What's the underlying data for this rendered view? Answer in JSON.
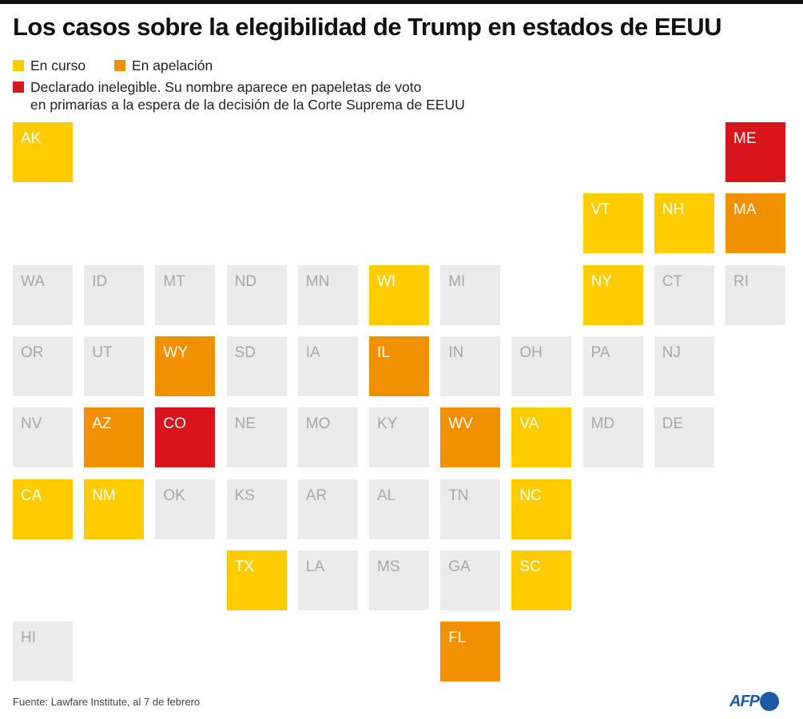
{
  "title": "Los casos sobre la elegibilidad de Trump en estados de EEUU",
  "colors": {
    "en_curso": "#FFCC00",
    "apelacion": "#F29100",
    "inelegible": "#D9141C",
    "none": "#EBEBEB",
    "none_text": "#A8A8A8"
  },
  "legend": {
    "en_curso": "En curso",
    "apelacion": "En apelación",
    "inelegible_1": "Declarado inelegible. Su nombre aparece en papeletas de voto",
    "inelegible_2": "en primarias a la espera de la decisión de la Corte Suprema de EEUU"
  },
  "states": [
    {
      "code": "AK",
      "status": "en_curso"
    },
    {
      "code": "ME",
      "status": "inelegible"
    },
    {
      "code": "VT",
      "status": "en_curso"
    },
    {
      "code": "NH",
      "status": "en_curso"
    },
    {
      "code": "MA",
      "status": "apelacion"
    },
    {
      "code": "WA",
      "status": "none"
    },
    {
      "code": "ID",
      "status": "none"
    },
    {
      "code": "MT",
      "status": "none"
    },
    {
      "code": "ND",
      "status": "none"
    },
    {
      "code": "MN",
      "status": "none"
    },
    {
      "code": "WI",
      "status": "en_curso"
    },
    {
      "code": "MI",
      "status": "none"
    },
    {
      "code": "NY",
      "status": "en_curso"
    },
    {
      "code": "CT",
      "status": "none"
    },
    {
      "code": "RI",
      "status": "none"
    },
    {
      "code": "OR",
      "status": "none"
    },
    {
      "code": "UT",
      "status": "none"
    },
    {
      "code": "WY",
      "status": "apelacion"
    },
    {
      "code": "SD",
      "status": "none"
    },
    {
      "code": "IA",
      "status": "none"
    },
    {
      "code": "IL",
      "status": "apelacion"
    },
    {
      "code": "IN",
      "status": "none"
    },
    {
      "code": "OH",
      "status": "none"
    },
    {
      "code": "PA",
      "status": "none"
    },
    {
      "code": "NJ",
      "status": "none"
    },
    {
      "code": "NV",
      "status": "none"
    },
    {
      "code": "AZ",
      "status": "apelacion"
    },
    {
      "code": "CO",
      "status": "inelegible"
    },
    {
      "code": "NE",
      "status": "none"
    },
    {
      "code": "MO",
      "status": "none"
    },
    {
      "code": "KY",
      "status": "none"
    },
    {
      "code": "WV",
      "status": "apelacion"
    },
    {
      "code": "VA",
      "status": "en_curso"
    },
    {
      "code": "MD",
      "status": "none"
    },
    {
      "code": "DE",
      "status": "none"
    },
    {
      "code": "CA",
      "status": "en_curso"
    },
    {
      "code": "NM",
      "status": "en_curso"
    },
    {
      "code": "OK",
      "status": "none"
    },
    {
      "code": "KS",
      "status": "none"
    },
    {
      "code": "AR",
      "status": "none"
    },
    {
      "code": "AL",
      "status": "none"
    },
    {
      "code": "TN",
      "status": "none"
    },
    {
      "code": "NC",
      "status": "en_curso"
    },
    {
      "code": "TX",
      "status": "en_curso"
    },
    {
      "code": "LA",
      "status": "none"
    },
    {
      "code": "MS",
      "status": "none"
    },
    {
      "code": "GA",
      "status": "none"
    },
    {
      "code": "SC",
      "status": "en_curso"
    },
    {
      "code": "HI",
      "status": "none"
    },
    {
      "code": "FL",
      "status": "apelacion"
    }
  ],
  "source": "Fuente: Lawfare Institute, al 7 de febrero",
  "logo": "AFP"
}
